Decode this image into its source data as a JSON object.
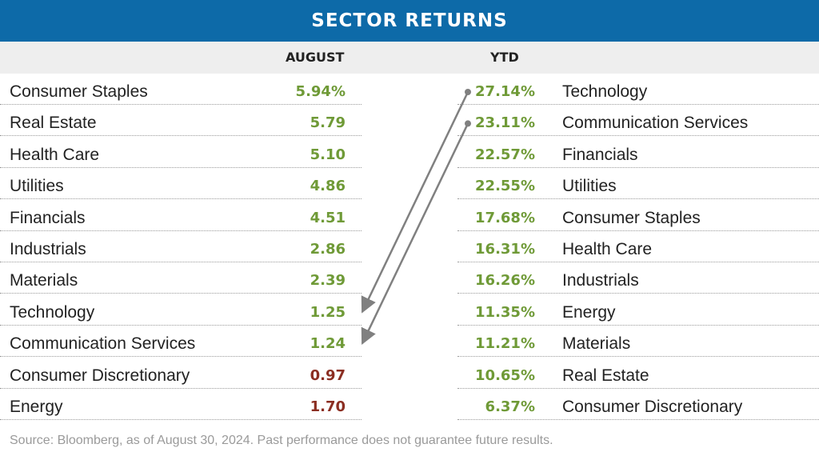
{
  "title": "SECTOR RETURNS",
  "footer": "Source: Bloomberg, as of August 30, 2024. Past performance does not guarantee future results.",
  "colors": {
    "title_bar": "#0d6aa8",
    "positive": "#6f9a37",
    "negative": "#8b2e22",
    "arrow": "#808080"
  },
  "chart_data": {
    "type": "table",
    "columns": [
      "AUGUST",
      "YTD"
    ],
    "august": [
      {
        "sector": "Consumer Staples",
        "value": "5.94%",
        "sign": "positive"
      },
      {
        "sector": "Real Estate",
        "value": "5.79",
        "sign": "positive"
      },
      {
        "sector": "Health Care",
        "value": "5.10",
        "sign": "positive"
      },
      {
        "sector": "Utilities",
        "value": "4.86",
        "sign": "positive"
      },
      {
        "sector": "Financials",
        "value": "4.51",
        "sign": "positive"
      },
      {
        "sector": "Industrials",
        "value": "2.86",
        "sign": "positive"
      },
      {
        "sector": "Materials",
        "value": "2.39",
        "sign": "positive"
      },
      {
        "sector": "Technology",
        "value": "1.25",
        "sign": "positive"
      },
      {
        "sector": "Communication Services",
        "value": "1.24",
        "sign": "positive"
      },
      {
        "sector": "Consumer Discretionary",
        "value": "0.97",
        "sign": "negative"
      },
      {
        "sector": "Energy",
        "value": "1.70",
        "sign": "negative"
      }
    ],
    "ytd": [
      {
        "sector": "Technology",
        "value": "27.14%",
        "sign": "positive"
      },
      {
        "sector": "Communication Services",
        "value": "23.11%",
        "sign": "positive"
      },
      {
        "sector": "Financials",
        "value": "22.57%",
        "sign": "positive"
      },
      {
        "sector": "Utilities",
        "value": "22.55%",
        "sign": "positive"
      },
      {
        "sector": "Consumer Staples",
        "value": "17.68%",
        "sign": "positive"
      },
      {
        "sector": "Health Care",
        "value": "16.31%",
        "sign": "positive"
      },
      {
        "sector": "Industrials",
        "value": "16.26%",
        "sign": "positive"
      },
      {
        "sector": "Energy",
        "value": "11.35%",
        "sign": "positive"
      },
      {
        "sector": "Materials",
        "value": "11.21%",
        "sign": "positive"
      },
      {
        "sector": "Real Estate",
        "value": "10.65%",
        "sign": "positive"
      },
      {
        "sector": "Consumer Discretionary",
        "value": "6.37%",
        "sign": "positive"
      }
    ],
    "arrows": [
      {
        "from_ytd_sector": "Technology",
        "to_august_sector": "Technology"
      },
      {
        "from_ytd_sector": "Communication Services",
        "to_august_sector": "Communication Services"
      }
    ]
  }
}
